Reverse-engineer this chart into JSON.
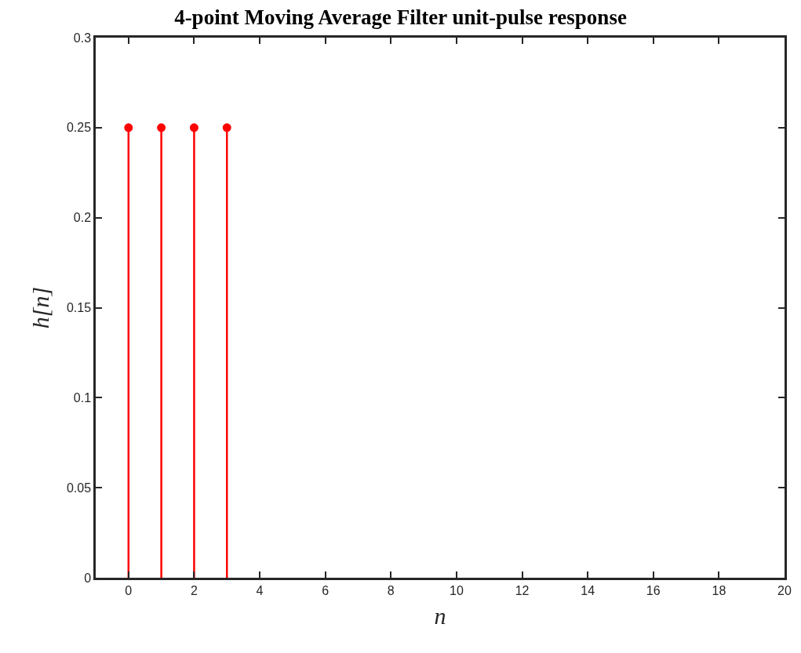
{
  "chart_data": {
    "type": "lollipop",
    "title": "4-point Moving Average Filter unit-pulse response",
    "xlabel": "n",
    "ylabel": "h[n]",
    "x": [
      0,
      1,
      2,
      3
    ],
    "series": [
      {
        "color": "#ff0000",
        "values": [
          0.25,
          0.25,
          0.25,
          0.25
        ]
      }
    ],
    "xlim": [
      -1,
      20
    ],
    "xticks": [
      0,
      2,
      4,
      6,
      8,
      10,
      12,
      14,
      16,
      18,
      20
    ],
    "ylim": [
      0,
      0.3
    ],
    "yticks": [
      0,
      0.05,
      0.1,
      0.15,
      0.2,
      0.25,
      0.3
    ],
    "marker": "circle"
  }
}
